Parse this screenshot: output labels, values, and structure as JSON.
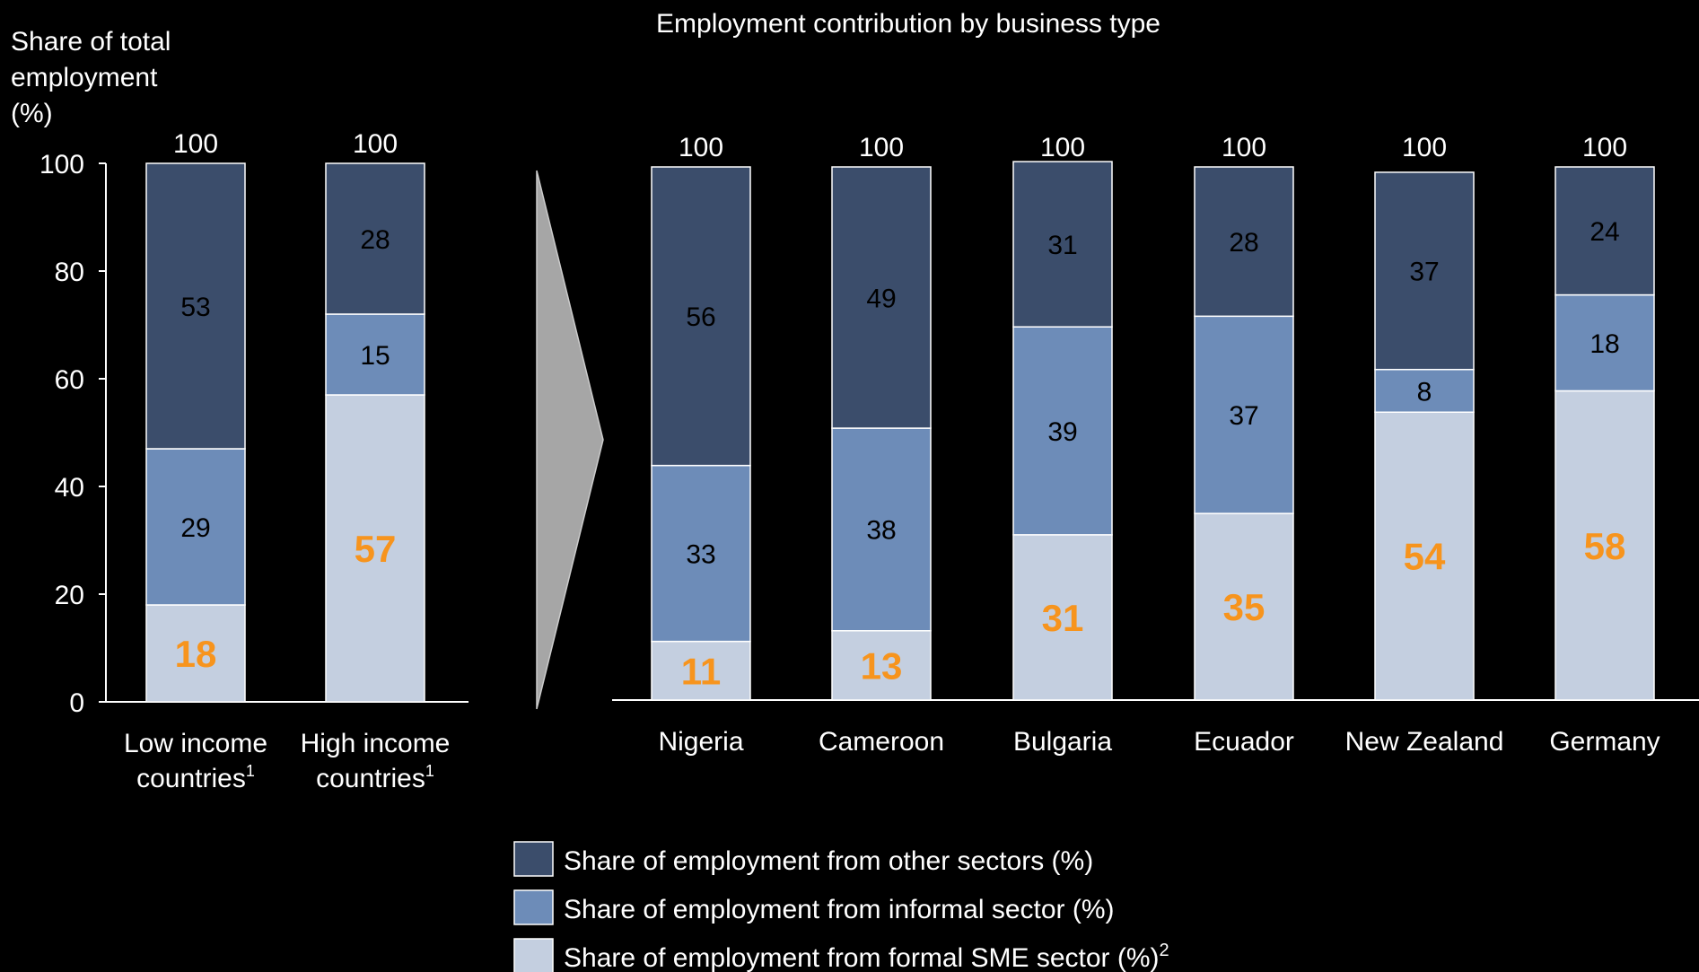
{
  "title": "Employment contribution by business type",
  "colors": {
    "other": "#3b4d6b",
    "informal": "#6d8cb8",
    "sme": "#c4cfe0",
    "highlight": "#f7941d",
    "text": "#ffffff",
    "dark_label": "#000000",
    "arrow": "#a6a6a6"
  },
  "chart_data": [
    {
      "type": "bar",
      "stacked": true,
      "ylabel": "Share of total employment (%)",
      "ylabel_lines": [
        "Share of total",
        "employment",
        "(%)"
      ],
      "ylim": [
        0,
        100
      ],
      "yticks": [
        "0",
        "20",
        "40",
        "60",
        "80",
        "100"
      ],
      "categories": [
        "Low income countries¹",
        "High income countries¹"
      ],
      "category_lines": [
        [
          "Low income",
          "countries",
          "1"
        ],
        [
          "High income",
          "countries",
          "1"
        ]
      ],
      "totals": [
        "100",
        "100"
      ],
      "series": [
        {
          "name": "Share of employment from formal SME sector (%)²",
          "key": "sme",
          "values": [
            18,
            57
          ]
        },
        {
          "name": "Share of employment from informal sector (%)",
          "key": "informal",
          "values": [
            29,
            15
          ]
        },
        {
          "name": "Share of employment from other sectors (%)",
          "key": "other",
          "values": [
            53,
            28
          ]
        }
      ]
    },
    {
      "type": "bar",
      "stacked": true,
      "title": "Employment contribution by business type",
      "ylim": [
        0,
        100
      ],
      "categories": [
        "Nigeria",
        "Cameroon",
        "Bulgaria",
        "Ecuador",
        "New Zealand",
        "Germany"
      ],
      "totals": [
        "100",
        "100",
        "100",
        "100",
        "100",
        "100"
      ],
      "series": [
        {
          "name": "Share of employment from formal SME sector (%)²",
          "key": "sme",
          "values": [
            11,
            13,
            31,
            35,
            54,
            58
          ]
        },
        {
          "name": "Share of employment from informal sector (%)",
          "key": "informal",
          "values": [
            33,
            38,
            39,
            37,
            8,
            18
          ]
        },
        {
          "name": "Share of employment from other sectors (%)",
          "key": "other",
          "values": [
            56,
            49,
            31,
            28,
            37,
            24
          ]
        }
      ]
    }
  ],
  "legend": [
    {
      "key": "other",
      "label": "Share of employment from other sectors (%)",
      "sup": ""
    },
    {
      "key": "informal",
      "label": "Share of employment from informal sector (%)",
      "sup": ""
    },
    {
      "key": "sme",
      "label": "Share of employment from formal SME sector (%)",
      "sup": "2"
    }
  ]
}
